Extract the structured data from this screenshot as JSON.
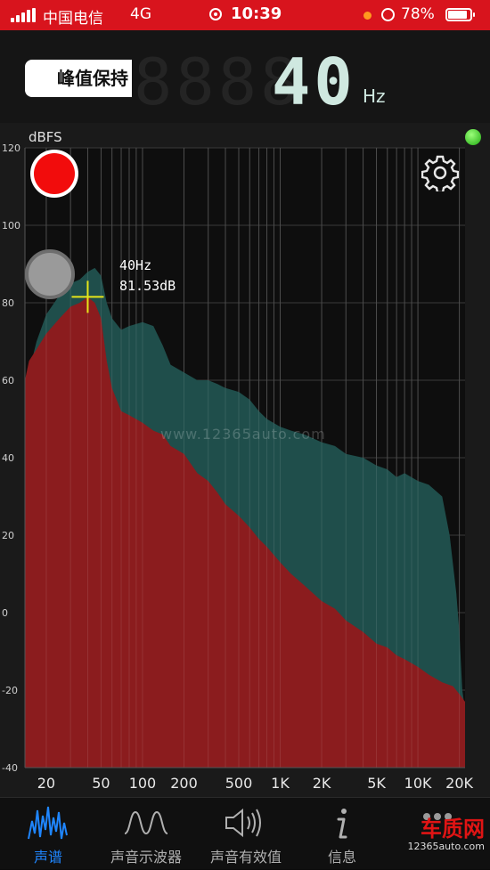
{
  "status_bar": {
    "carrier": "中国电信",
    "network": "4G",
    "time": "10:39",
    "battery": "78%"
  },
  "header": {
    "peak_hold_label": "峰值保持",
    "frequency_value": "40",
    "frequency_unit": "Hz"
  },
  "chart_data": {
    "type": "area",
    "ylabel": "dBFS",
    "y_ticks": [
      "120",
      "100",
      "80",
      "60",
      "40",
      "20",
      "0",
      "-20",
      "-40"
    ],
    "ylim": [
      -40,
      120
    ],
    "x_scale": "log",
    "xlim": [
      14,
      22000
    ],
    "x_ticks": [
      {
        "label": "20",
        "value": 20
      },
      {
        "label": "50",
        "value": 50
      },
      {
        "label": "100",
        "value": 100
      },
      {
        "label": "200",
        "value": 200
      },
      {
        "label": "500",
        "value": 500
      },
      {
        "label": "1K",
        "value": 1000
      },
      {
        "label": "2K",
        "value": 2000
      },
      {
        "label": "5K",
        "value": 5000
      },
      {
        "label": "10K",
        "value": 10000
      },
      {
        "label": "20K",
        "value": 20000
      }
    ],
    "grid": true,
    "series": [
      {
        "role": "peak",
        "color": "#1f4e4b",
        "points": [
          [
            14,
            58
          ],
          [
            17,
            70
          ],
          [
            20,
            77
          ],
          [
            25,
            82
          ],
          [
            30,
            85
          ],
          [
            35,
            86
          ],
          [
            40,
            88
          ],
          [
            45,
            89
          ],
          [
            50,
            87
          ],
          [
            55,
            80
          ],
          [
            60,
            76
          ],
          [
            70,
            73
          ],
          [
            80,
            74
          ],
          [
            100,
            75
          ],
          [
            120,
            74
          ],
          [
            140,
            69
          ],
          [
            160,
            64
          ],
          [
            200,
            62
          ],
          [
            250,
            60
          ],
          [
            300,
            60
          ],
          [
            350,
            59
          ],
          [
            400,
            58
          ],
          [
            500,
            57
          ],
          [
            600,
            55
          ],
          [
            700,
            52
          ],
          [
            800,
            50
          ],
          [
            1000,
            48
          ],
          [
            1200,
            47
          ],
          [
            1500,
            46
          ],
          [
            2000,
            44
          ],
          [
            2500,
            43
          ],
          [
            3000,
            41
          ],
          [
            4000,
            40
          ],
          [
            5000,
            38
          ],
          [
            6000,
            37
          ],
          [
            7000,
            35
          ],
          [
            8000,
            36
          ],
          [
            10000,
            34
          ],
          [
            12000,
            33
          ],
          [
            15000,
            30
          ],
          [
            17000,
            20
          ],
          [
            19000,
            5
          ],
          [
            20000,
            -5
          ],
          [
            21000,
            -20
          ],
          [
            22000,
            -25
          ]
        ]
      },
      {
        "role": "live",
        "color": "#8b1c1e",
        "points": [
          [
            14,
            60
          ],
          [
            15,
            65
          ],
          [
            17,
            68
          ],
          [
            20,
            72
          ],
          [
            25,
            76
          ],
          [
            30,
            79
          ],
          [
            35,
            80
          ],
          [
            40,
            81.5
          ],
          [
            45,
            80
          ],
          [
            50,
            76
          ],
          [
            55,
            65
          ],
          [
            60,
            58
          ],
          [
            70,
            52
          ],
          [
            80,
            51
          ],
          [
            100,
            49
          ],
          [
            120,
            47
          ],
          [
            140,
            46
          ],
          [
            160,
            43
          ],
          [
            200,
            41
          ],
          [
            250,
            36
          ],
          [
            300,
            34
          ],
          [
            350,
            31
          ],
          [
            400,
            28
          ],
          [
            500,
            25
          ],
          [
            600,
            22
          ],
          [
            700,
            19
          ],
          [
            800,
            17
          ],
          [
            1000,
            13
          ],
          [
            1200,
            10
          ],
          [
            1500,
            7
          ],
          [
            2000,
            3
          ],
          [
            2500,
            1
          ],
          [
            3000,
            -2
          ],
          [
            4000,
            -5
          ],
          [
            5000,
            -8
          ],
          [
            6000,
            -9
          ],
          [
            7000,
            -11
          ],
          [
            8000,
            -12
          ],
          [
            10000,
            -14
          ],
          [
            12000,
            -16
          ],
          [
            15000,
            -18
          ],
          [
            18000,
            -19
          ],
          [
            20000,
            -21
          ],
          [
            22000,
            -23
          ]
        ]
      }
    ],
    "cursor": {
      "x": 40,
      "y": 81.53,
      "label_freq": "40Hz",
      "label_level": "81.53dB",
      "color": "#e6e619"
    }
  },
  "watermark": "www.12365auto.com",
  "tabs": [
    {
      "label": "声谱",
      "icon": "spectrum-icon",
      "active": true
    },
    {
      "label": "声音示波器",
      "icon": "oscilloscope-wave-icon",
      "active": false
    },
    {
      "label": "声音有效值",
      "icon": "speaker-icon",
      "active": false
    },
    {
      "label": "信息",
      "icon": "info-icon",
      "active": false
    }
  ],
  "brand": {
    "name": "车质网",
    "url": "12365auto.com"
  },
  "colors": {
    "status_bar": "#d8141d",
    "accent": "#1f86ff",
    "record": "#f20c0c",
    "indicator": "#2bc41a"
  }
}
